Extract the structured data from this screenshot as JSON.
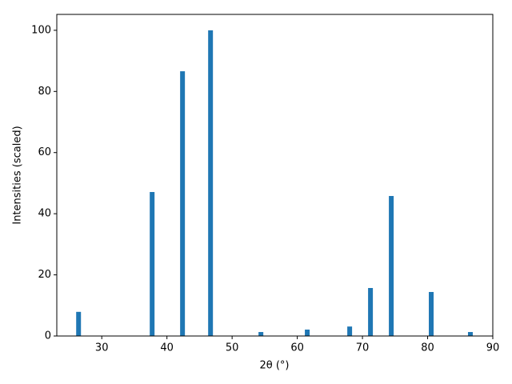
{
  "chart_data": {
    "type": "bar",
    "x": [
      26.44,
      37.73,
      42.39,
      46.69,
      54.42,
      61.53,
      68.04,
      71.23,
      74.42,
      80.55,
      86.56
    ],
    "values": [
      7.9,
      47.1,
      86.6,
      100,
      1.3,
      2.1,
      3.1,
      15.7,
      45.8,
      14.4,
      1.3
    ],
    "color": "#1f77b4",
    "xlabel": "2θ (°)",
    "ylabel": "Intensities (scaled)",
    "xlim": [
      23.1,
      90
    ],
    "xticks": [
      30,
      40,
      50,
      60,
      70,
      80,
      90
    ],
    "ylim": [
      0,
      105.2
    ],
    "yticks": [
      0,
      20,
      40,
      60,
      80,
      100
    ],
    "grid": false
  }
}
